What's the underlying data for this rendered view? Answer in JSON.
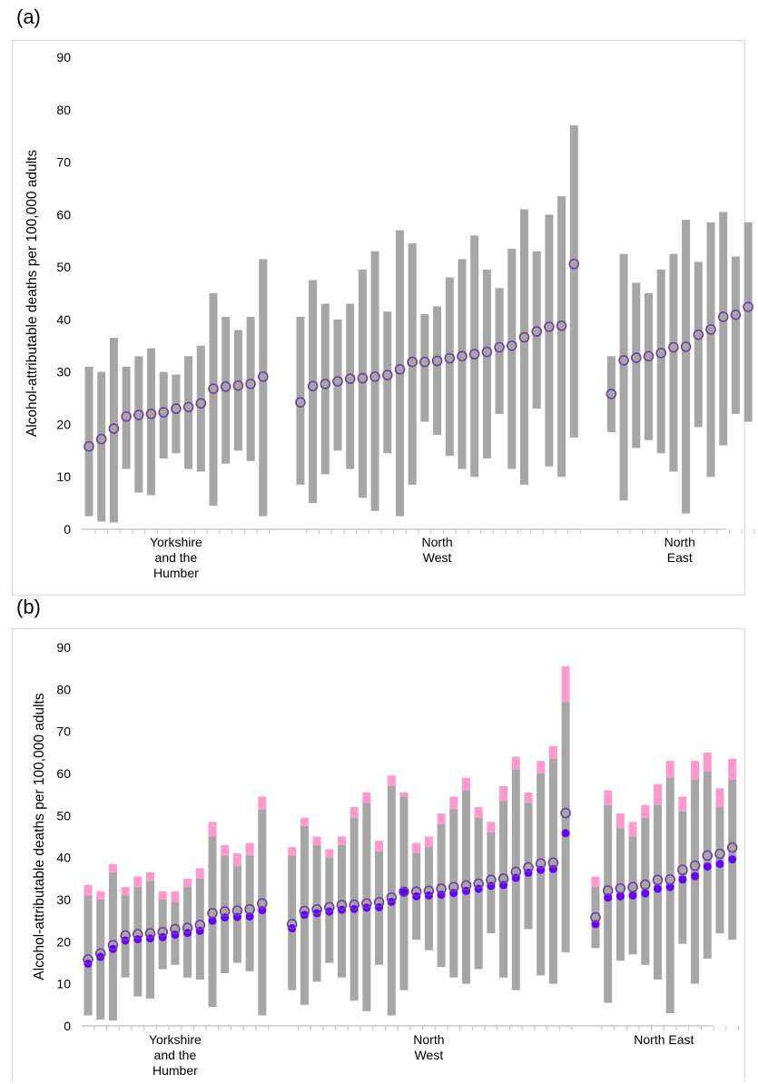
{
  "panels": [
    {
      "label": "(a)",
      "ylabel": "Alcohol-attributable deaths per 100,000 adults",
      "regions": [
        {
          "lines": [
            "Yorkshire",
            "and the",
            "Humber"
          ]
        },
        {
          "lines": [
            "North",
            "West"
          ]
        },
        {
          "lines": [
            "North",
            "East"
          ]
        }
      ]
    },
    {
      "label": "(b)",
      "ylabel": "Alcohol-attributable deaths per 100,000 adults",
      "regions": [
        {
          "lines": [
            "Yorkshire",
            "and the",
            "Humber"
          ]
        },
        {
          "lines": [
            "North",
            "West"
          ]
        },
        {
          "lines": [
            "North East"
          ]
        }
      ]
    }
  ],
  "colors": {
    "range_bar": "#a6a6a6",
    "upper_extension": "#ff99cc",
    "open_marker_stroke": "#6f3fa3",
    "filled_marker": "#6600ff",
    "axis": "#bfbfbf"
  },
  "chart_data": [
    {
      "type": "scatter",
      "title": "(a)",
      "ylabel": "Alcohol-attributable deaths per 100,000 adults",
      "ylim": [
        0,
        90
      ],
      "yticks": [
        0,
        10,
        20,
        30,
        40,
        50,
        60,
        70,
        80,
        90
      ],
      "grid": false,
      "groups": [
        {
          "region": "Yorkshire and the Humber",
          "low": [
            2.5,
            1.5,
            1.3,
            11.5,
            7,
            6.5,
            13.5,
            14.5,
            11.5,
            11,
            4.5,
            12.5,
            15,
            13,
            2.5
          ],
          "high": [
            31,
            30,
            36.5,
            31,
            33,
            34.5,
            30,
            29.5,
            33,
            35,
            45,
            40.5,
            38,
            40.5,
            51.5
          ],
          "point": [
            15.8,
            17.2,
            19.2,
            21.5,
            21.8,
            22,
            22.3,
            23,
            23.3,
            24,
            26.8,
            27.2,
            27.4,
            27.7,
            29.1
          ]
        },
        {
          "region": "North West",
          "low": [
            8.5,
            5,
            10.5,
            15,
            11.5,
            6,
            3.5,
            14.5,
            2.5,
            8.5,
            20.5,
            18,
            14,
            11.5,
            10,
            13.5,
            22,
            11.5,
            8.5,
            23,
            12,
            10,
            17.5
          ],
          "high": [
            40.5,
            47.5,
            43,
            40,
            43,
            49.5,
            53,
            41.5,
            57,
            54.5,
            41,
            42.5,
            48,
            51.5,
            56,
            49.5,
            46,
            53.5,
            61,
            53,
            60,
            63.5,
            77
          ],
          "point": [
            24.2,
            27.3,
            27.7,
            28.2,
            28.7,
            28.8,
            29.1,
            29.4,
            30.5,
            31.9,
            31.9,
            32.1,
            32.6,
            33,
            33.4,
            33.8,
            34.7,
            35,
            36.6,
            37.7,
            38.6,
            38.8,
            50.6
          ]
        },
        {
          "region": "North East",
          "low": [
            18.5,
            5.5,
            15.5,
            17,
            14.5,
            11,
            3,
            19.5,
            10,
            16,
            22,
            20.5
          ],
          "high": [
            33,
            52.5,
            47,
            45,
            49.5,
            52.5,
            59,
            51,
            58.5,
            60.5,
            52,
            58.5
          ],
          "point": [
            25.8,
            32.2,
            32.7,
            33,
            33.6,
            34.7,
            34.8,
            37.1,
            38.1,
            40.5,
            40.9,
            42.4
          ]
        }
      ]
    },
    {
      "type": "scatter",
      "title": "(b)",
      "ylabel": "Alcohol-attributable deaths per 100,000 adults",
      "ylim": [
        0,
        90
      ],
      "yticks": [
        0,
        10,
        20,
        30,
        40,
        50,
        60,
        70,
        80,
        90
      ],
      "grid": false,
      "groups": [
        {
          "region": "Yorkshire and the Humber",
          "low": [
            2.5,
            1.5,
            1.3,
            11.5,
            7,
            6.5,
            13.5,
            14.5,
            11.5,
            11,
            4.5,
            12.5,
            15,
            13,
            2.5
          ],
          "high": [
            31,
            30,
            36.5,
            31,
            33,
            34.5,
            30,
            29.5,
            33,
            35,
            45,
            40.5,
            38,
            40.5,
            51.5
          ],
          "high_ext": [
            33.5,
            32,
            38.5,
            33,
            35.5,
            36.5,
            32,
            32,
            35,
            37.5,
            48.5,
            43,
            41,
            43.5,
            54.5
          ],
          "point_open": [
            15.8,
            17.2,
            19.2,
            21.5,
            21.8,
            22,
            22.3,
            23,
            23.3,
            24,
            26.8,
            27.2,
            27.4,
            27.7,
            29.1
          ],
          "point_filled": [
            14.8,
            16.4,
            18.3,
            20.3,
            20.6,
            20.8,
            21.1,
            21.7,
            22.1,
            22.6,
            25,
            25.8,
            25.9,
            26,
            27.5
          ]
        },
        {
          "region": "North West",
          "low": [
            8.5,
            5,
            10.5,
            15,
            11.5,
            6,
            3.5,
            14.5,
            2.5,
            8.5,
            20.5,
            18,
            14,
            11.5,
            10,
            13.5,
            22,
            11.5,
            8.5,
            23,
            12,
            10,
            17.5
          ],
          "high": [
            40.5,
            47.5,
            43,
            40,
            43,
            49.5,
            53,
            41.5,
            57,
            54.5,
            41,
            42.5,
            48,
            51.5,
            56,
            49.5,
            46,
            53.5,
            61,
            53,
            60,
            63.5,
            77
          ],
          "high_ext": [
            42.5,
            49.5,
            45,
            42,
            45,
            52,
            55.5,
            44,
            59.5,
            55.5,
            43.5,
            45,
            50.5,
            54.5,
            59,
            52,
            48.5,
            57,
            64,
            55.5,
            63,
            66.5,
            85.5
          ],
          "point_open": [
            24.2,
            27.3,
            27.7,
            28.2,
            28.7,
            28.8,
            29.1,
            29.4,
            30.5,
            31.9,
            31.9,
            32.1,
            32.6,
            33,
            33.4,
            33.8,
            34.7,
            35,
            36.6,
            37.7,
            38.6,
            38.8,
            50.6
          ],
          "point_filled": [
            23.2,
            26.4,
            26.8,
            27.2,
            27.6,
            27.8,
            28.1,
            28.2,
            29.5,
            31.8,
            30.8,
            31,
            31.2,
            31.6,
            32.1,
            32.6,
            33.3,
            33.5,
            35.2,
            36.4,
            37.1,
            37.3,
            45.8
          ]
        },
        {
          "region": "North East",
          "low": [
            18.5,
            5.5,
            15.5,
            17,
            14.5,
            11,
            3,
            19.5,
            10,
            16,
            22,
            20.5
          ],
          "high": [
            33,
            52.5,
            47,
            45,
            49.5,
            52.5,
            59,
            51,
            58.5,
            60.5,
            52,
            58.5
          ],
          "high_ext": [
            35.5,
            56,
            50.5,
            48.5,
            52.5,
            57.5,
            63,
            54.5,
            63,
            65,
            56.5,
            63.5
          ],
          "point_open": [
            25.8,
            32.2,
            32.7,
            33,
            33.6,
            34.7,
            34.8,
            37.1,
            38.1,
            40.5,
            40.9,
            42.4
          ],
          "point_filled": [
            24.2,
            30.5,
            30.8,
            31,
            31.5,
            32.6,
            33,
            34.8,
            35.6,
            37.9,
            38.5,
            39.6
          ]
        }
      ]
    }
  ]
}
